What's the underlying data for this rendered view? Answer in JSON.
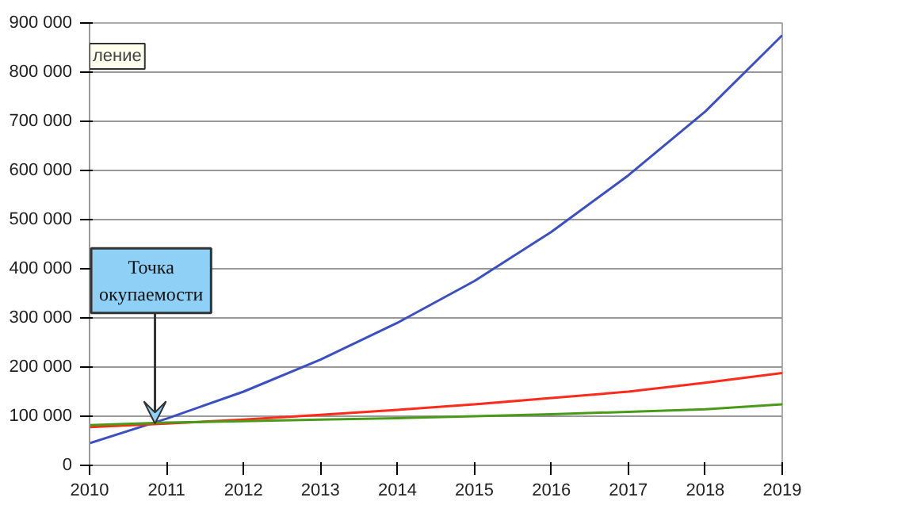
{
  "chart_data": {
    "type": "line",
    "x": [
      2010,
      2011,
      2012,
      2013,
      2014,
      2015,
      2016,
      2017,
      2018,
      2019
    ],
    "series": [
      {
        "color": "#3a4fc4",
        "values": [
          45000,
          95000,
          150000,
          215000,
          290000,
          375000,
          475000,
          590000,
          720000,
          875000
        ]
      },
      {
        "color": "#ff2a1a",
        "values": [
          78000,
          85000,
          93000,
          103000,
          113000,
          124000,
          137000,
          150000,
          168000,
          188000
        ]
      },
      {
        "color": "#4a9a1a",
        "values": [
          82000,
          87000,
          90000,
          93000,
          96000,
          100000,
          104000,
          109000,
          114000,
          124000
        ]
      }
    ],
    "xlim": [
      2010,
      2019
    ],
    "xticks": [
      2010,
      2011,
      2012,
      2013,
      2014,
      2015,
      2016,
      2017,
      2018,
      2019
    ],
    "ylim": [
      0,
      900000
    ],
    "yticks": [
      {
        "value": 0,
        "label": "0"
      },
      {
        "value": 100000,
        "label": "100 000"
      },
      {
        "value": 200000,
        "label": "200 000"
      },
      {
        "value": 300000,
        "label": "300 000"
      },
      {
        "value": 400000,
        "label": "400 000"
      },
      {
        "value": 500000,
        "label": "500 000"
      },
      {
        "value": 600000,
        "label": "600 000"
      },
      {
        "value": 700000,
        "label": "700 000"
      },
      {
        "value": 800000,
        "label": "800 000"
      },
      {
        "value": 900000,
        "label": "900 000"
      }
    ],
    "grid": "y",
    "marker": "none",
    "line_style": "solid",
    "annotations": [
      {
        "text": "Точка окупаемости",
        "x": 2010.85,
        "y": 85000
      },
      "ление"
    ]
  }
}
